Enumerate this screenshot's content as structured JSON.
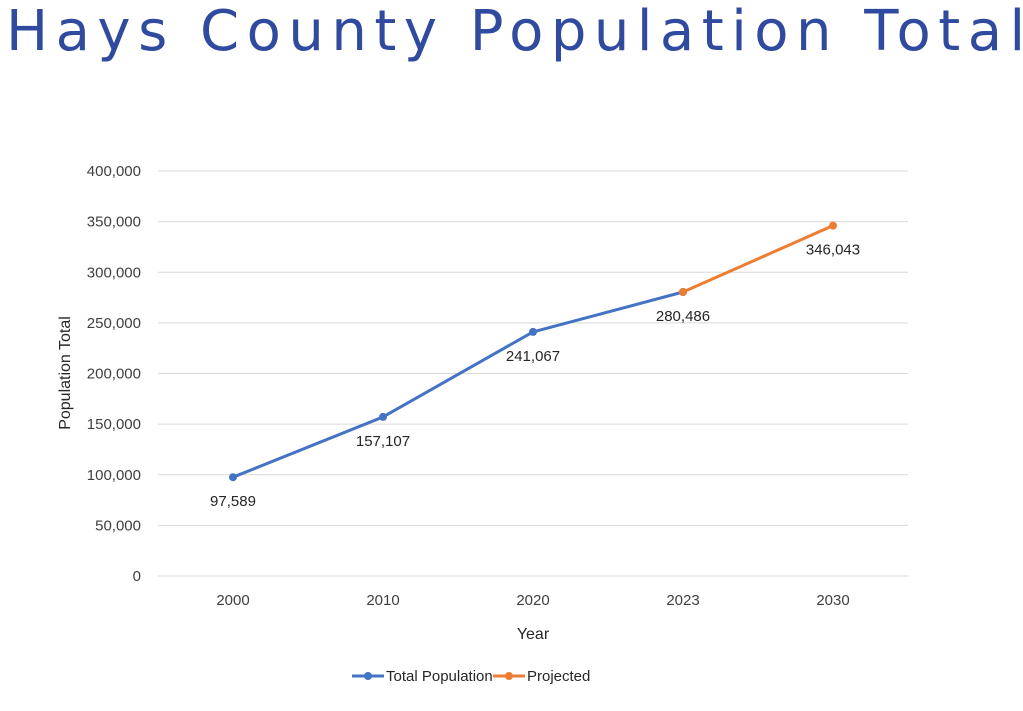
{
  "title": "Hays County Population Totals",
  "chart_data": {
    "type": "line",
    "title": "Hays County Population Totals",
    "xlabel": "Year",
    "ylabel": "Population Total",
    "categories": [
      "2000",
      "2010",
      "2020",
      "2023",
      "2030"
    ],
    "ylim": [
      0,
      400000
    ],
    "yticks": [
      0,
      50000,
      100000,
      150000,
      200000,
      250000,
      300000,
      350000,
      400000
    ],
    "ytick_labels": [
      "0",
      "50,000",
      "100,000",
      "150,000",
      "200,000",
      "250,000",
      "300,000",
      "350,000",
      "400,000"
    ],
    "grid": true,
    "legend_position": "bottom",
    "series": [
      {
        "name": "Total Population",
        "color": "#4472C4",
        "values": [
          97589,
          157107,
          241067,
          280486,
          null
        ],
        "labels": [
          "97,589",
          "157,107",
          "241,067",
          "280,486",
          null
        ]
      },
      {
        "name": "Projected",
        "color": "#ED7D31",
        "values": [
          null,
          null,
          null,
          280486,
          346043
        ],
        "labels": [
          null,
          null,
          null,
          null,
          "346,043"
        ]
      }
    ]
  }
}
